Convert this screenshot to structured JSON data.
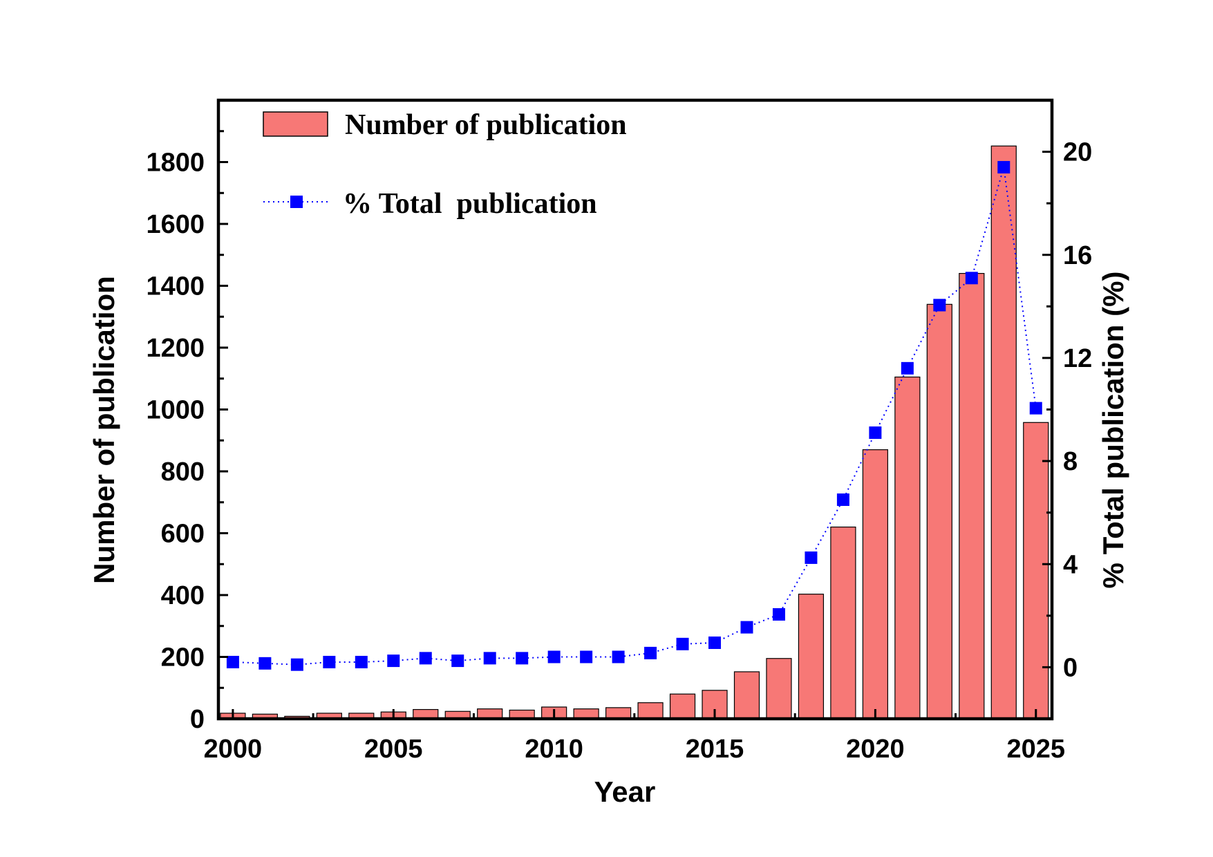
{
  "chart_data": {
    "type": "bar",
    "title": "",
    "xlabel": "Year",
    "ylabel": "Number of publication",
    "y2label": "% Total publication (%)",
    "xlim": [
      1999.55,
      2025.5
    ],
    "ylim": [
      0,
      2000
    ],
    "y2lim": [
      -2,
      22
    ],
    "x_ticks": [
      "2000",
      "2005",
      "2010",
      "2015",
      "2020",
      "2025"
    ],
    "y_ticks": [
      "0",
      "200",
      "400",
      "600",
      "800",
      "1000",
      "1200",
      "1400",
      "1600",
      "1800"
    ],
    "y2_ticks": [
      "0",
      "4",
      "8",
      "12",
      "16",
      "20"
    ],
    "legend_position": "top-left",
    "grid": false,
    "x": [
      2000,
      2001,
      2002,
      2003,
      2004,
      2005,
      2006,
      2007,
      2008,
      2009,
      2010,
      2011,
      2012,
      2013,
      2014,
      2015,
      2016,
      2017,
      2018,
      2019,
      2020,
      2021,
      2022,
      2023,
      2024,
      2025
    ],
    "series": [
      {
        "name": "Number of publication",
        "kind": "bar",
        "axis": "left",
        "color": "#f77876",
        "values": [
          18,
          15,
          8,
          18,
          18,
          22,
          30,
          24,
          32,
          28,
          38,
          32,
          36,
          52,
          80,
          92,
          152,
          195,
          403,
          620,
          870,
          1105,
          1340,
          1440,
          1852,
          958
        ]
      },
      {
        "name": "% Total  publication",
        "kind": "line-dotted-square",
        "axis": "right",
        "color": "#0000ff",
        "values": [
          0.2,
          0.15,
          0.1,
          0.2,
          0.2,
          0.25,
          0.35,
          0.25,
          0.35,
          0.35,
          0.4,
          0.4,
          0.4,
          0.55,
          0.9,
          0.95,
          1.55,
          2.05,
          4.25,
          6.5,
          9.1,
          11.6,
          14.05,
          15.1,
          19.4,
          10.05
        ]
      }
    ]
  }
}
